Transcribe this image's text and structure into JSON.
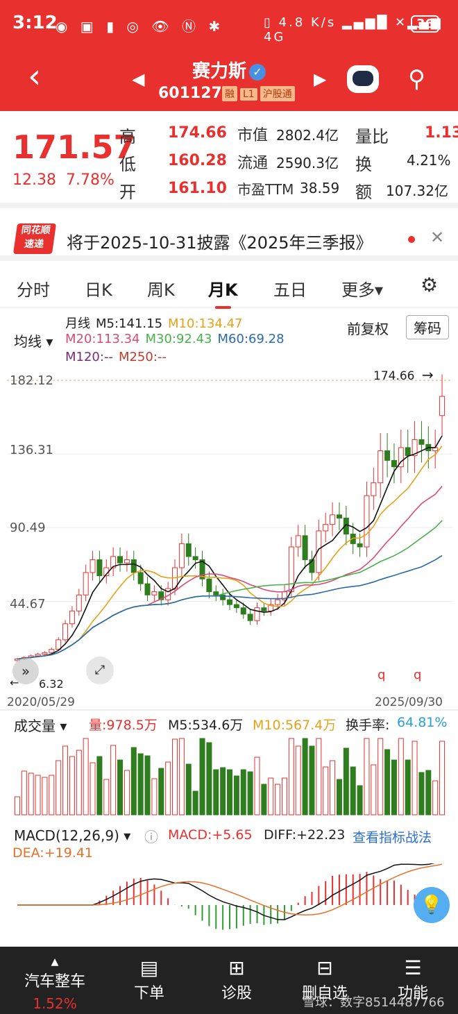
{
  "status": {
    "time": "3:12",
    "net_speed": "4.8 K/s",
    "battery": "36"
  },
  "header": {
    "name": "赛力斯",
    "code": "601127",
    "tags": [
      "融",
      "L1",
      "沪股通"
    ]
  },
  "quote": {
    "price": "171.57",
    "change": "12.38",
    "change_pct": "7.78%",
    "high_label": "高",
    "high": "174.66",
    "low_label": "低",
    "low": "160.28",
    "open_label": "开",
    "open": "161.10",
    "mcap_label": "市值",
    "mcap": "2802.4亿",
    "float_label": "流通",
    "float": "2590.3亿",
    "pe_label": "市盈TTM",
    "pe": "38.59",
    "vr_label": "量比",
    "vr": "1.13",
    "turn_label": "换",
    "turn": "4.21%",
    "amt_label": "额",
    "amt": "107.32亿"
  },
  "notice": {
    "logo_top": "同花顺",
    "logo_bottom": "速递",
    "text": "将于2025-10-31披露《2025年三季报》"
  },
  "tabs": [
    "分时",
    "日K",
    "周K",
    "月K",
    "五日",
    "更多▾"
  ],
  "ma": {
    "selector": "均线 ▾",
    "period": "月线",
    "m5": "M5:141.15",
    "m10": "M10:134.47",
    "m20": "M20:113.34",
    "m30": "M30:92.43",
    "m60": "M60:69.28",
    "m120": "M120:--",
    "m250": "M250:--",
    "adjust": "前复权",
    "chips": "筹码"
  },
  "chart_data": {
    "type": "candlestick",
    "y_ticks": [
      "182.12",
      "136.31",
      "90.49",
      "44.67"
    ],
    "max_label": "174.66",
    "min_label": "6.32",
    "x_start": "2020/05/29",
    "x_end": "2025/09/30",
    "closes": [
      8,
      9,
      10,
      11,
      12,
      14,
      20,
      30,
      38,
      48,
      62,
      70,
      60,
      65,
      72,
      68,
      70,
      62,
      55,
      48,
      50,
      45,
      52,
      65,
      80,
      72,
      70,
      58,
      50,
      48,
      45,
      42,
      40,
      36,
      32,
      40,
      38,
      42,
      45,
      50,
      78,
      85,
      70,
      62,
      88,
      92,
      98,
      96,
      86,
      80,
      78,
      110,
      118,
      138,
      132,
      128,
      140,
      135,
      145,
      142,
      138,
      140,
      172
    ],
    "opens": [
      7,
      8,
      9,
      10,
      11,
      12,
      14,
      20,
      30,
      38,
      48,
      62,
      70,
      60,
      65,
      72,
      68,
      70,
      62,
      55,
      48,
      50,
      45,
      52,
      65,
      80,
      72,
      70,
      58,
      50,
      48,
      45,
      42,
      40,
      36,
      32,
      40,
      38,
      42,
      45,
      50,
      78,
      85,
      70,
      62,
      88,
      92,
      98,
      96,
      86,
      80,
      78,
      110,
      118,
      138,
      132,
      128,
      140,
      135,
      145,
      142,
      138,
      160
    ]
  },
  "volume": {
    "selector": "成交量 ▾",
    "vol": "量:978.5万",
    "m5": "M5:534.6万",
    "m10": "M10:567.4万",
    "turnover_label": "换手率:",
    "turnover": "64.81%"
  },
  "macd": {
    "selector": "MACD(12,26,9) ▾",
    "macd": "MACD:+5.65",
    "diff": "DIFF:+22.23",
    "link": "查看指标战法",
    "dea": "DEA:+19.41"
  },
  "footer": [
    {
      "label": "汽车整车",
      "sub": "1.52%"
    },
    {
      "label": "下单"
    },
    {
      "label": "诊股"
    },
    {
      "label": "删自选"
    },
    {
      "label": "功能"
    }
  ],
  "watermark": "雪球：数字8514487766"
}
